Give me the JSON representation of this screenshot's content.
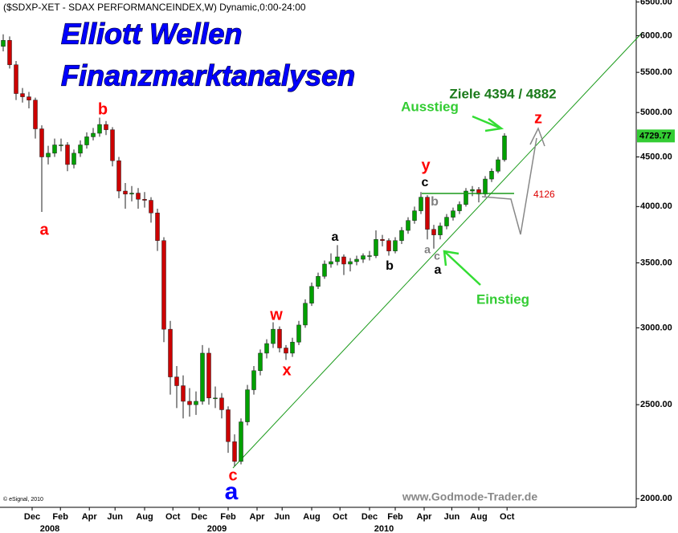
{
  "chart_data": {
    "type": "candlestick",
    "title": "($SDXP-XET - SDAX PERFORMANCEINDEX,W) Dynamic,0:00-24:00",
    "up_color": "#00a000",
    "down_color": "#cc0000",
    "log_scale": true,
    "grid": false,
    "ylim": [
      1930,
      6530
    ],
    "yticks": [
      {
        "value": 2000,
        "label": "2000.00"
      },
      {
        "value": 2500,
        "label": "2500.00"
      },
      {
        "value": 3000,
        "label": "3000.00"
      },
      {
        "value": 3500,
        "label": "3500.00"
      },
      {
        "value": 4000,
        "label": "4000.00"
      },
      {
        "value": 4500,
        "label": "4500.00"
      },
      {
        "value": 5000,
        "label": "5000.00"
      },
      {
        "value": 5500,
        "label": "5500.00"
      },
      {
        "value": 6000,
        "label": "6000.00"
      },
      {
        "value": 6500,
        "label": "6500.00"
      }
    ],
    "xticks": [
      {
        "value": 4.5,
        "label": "Dec"
      },
      {
        "value": 8.9,
        "label": "Feb"
      },
      {
        "value": 13.4,
        "label": "Apr"
      },
      {
        "value": 17.4,
        "label": "Jun"
      },
      {
        "value": 22,
        "label": "Aug"
      },
      {
        "value": 26.4,
        "label": "Oct"
      },
      {
        "value": 30.5,
        "label": "Dec"
      },
      {
        "value": 35,
        "label": "Feb"
      },
      {
        "value": 39.5,
        "label": "Apr"
      },
      {
        "value": 43.4,
        "label": "Jun"
      },
      {
        "value": 48,
        "label": "Aug"
      },
      {
        "value": 52.4,
        "label": "Oct"
      },
      {
        "value": 57,
        "label": "Dec"
      },
      {
        "value": 61,
        "label": "Feb"
      },
      {
        "value": 65.5,
        "label": "Apr"
      },
      {
        "value": 69.8,
        "label": "Jun"
      },
      {
        "value": 74,
        "label": "Aug"
      },
      {
        "value": 78.4,
        "label": "Oct"
      }
    ],
    "year_ticks": [
      {
        "value": 7.25,
        "label": "2008"
      },
      {
        "value": 33.25,
        "label": "2009"
      },
      {
        "value": 59.25,
        "label": "2010"
      }
    ],
    "candles": [
      [
        5850,
        6020,
        5780,
        5934
      ],
      [
        5934,
        5990,
        5550,
        5600
      ],
      [
        5600,
        5650,
        5150,
        5230
      ],
      [
        5230,
        5300,
        5120,
        5190
      ],
      [
        5190,
        5250,
        5050,
        5150
      ],
      [
        5150,
        5180,
        4700,
        4810
      ],
      [
        4810,
        4850,
        3950,
        4500
      ],
      [
        4500,
        4620,
        4420,
        4540
      ],
      [
        4540,
        4700,
        4500,
        4630
      ],
      [
        4630,
        4700,
        4560,
        4630
      ],
      [
        4630,
        4660,
        4350,
        4420
      ],
      [
        4420,
        4580,
        4380,
        4540
      ],
      [
        4540,
        4680,
        4500,
        4630
      ],
      [
        4630,
        4770,
        4590,
        4720
      ],
      [
        4720,
        4820,
        4680,
        4760
      ],
      [
        4760,
        4940,
        4720,
        4860
      ],
      [
        4860,
        4900,
        4740,
        4800
      ],
      [
        4800,
        4830,
        4400,
        4460
      ],
      [
        4460,
        4500,
        4080,
        4150
      ],
      [
        4150,
        4230,
        3980,
        4120
      ],
      [
        4120,
        4200,
        4050,
        4130
      ],
      [
        4130,
        4180,
        3980,
        4070
      ],
      [
        4070,
        4140,
        3990,
        4060
      ],
      [
        4060,
        4090,
        3850,
        3940
      ],
      [
        3940,
        3980,
        3600,
        3690
      ],
      [
        3690,
        3720,
        2900,
        2990
      ],
      [
        2990,
        3050,
        2560,
        2670
      ],
      [
        2670,
        2740,
        2480,
        2615
      ],
      [
        2615,
        2680,
        2420,
        2520
      ],
      [
        2520,
        2600,
        2430,
        2500
      ],
      [
        2500,
        2580,
        2440,
        2520
      ],
      [
        2520,
        2880,
        2500,
        2825
      ],
      [
        2825,
        2860,
        2500,
        2540
      ],
      [
        2540,
        2610,
        2480,
        2540
      ],
      [
        2540,
        2570,
        2420,
        2470
      ],
      [
        2470,
        2490,
        2230,
        2290
      ],
      [
        2290,
        2330,
        2160,
        2185
      ],
      [
        2185,
        2420,
        2170,
        2400
      ],
      [
        2400,
        2620,
        2380,
        2590
      ],
      [
        2590,
        2740,
        2560,
        2710
      ],
      [
        2710,
        2850,
        2680,
        2825
      ],
      [
        2825,
        2920,
        2790,
        2890
      ],
      [
        2890,
        3040,
        2860,
        2990
      ],
      [
        2990,
        3010,
        2830,
        2860
      ],
      [
        2860,
        2880,
        2780,
        2825
      ],
      [
        2825,
        2930,
        2800,
        2900
      ],
      [
        2900,
        3050,
        2880,
        3020
      ],
      [
        3020,
        3210,
        3000,
        3180
      ],
      [
        3180,
        3340,
        3160,
        3310
      ],
      [
        3310,
        3420,
        3290,
        3390
      ],
      [
        3390,
        3520,
        3370,
        3490
      ],
      [
        3490,
        3580,
        3460,
        3510
      ],
      [
        3510,
        3650,
        3480,
        3550
      ],
      [
        3550,
        3570,
        3400,
        3490
      ],
      [
        3490,
        3540,
        3430,
        3510
      ],
      [
        3510,
        3560,
        3480,
        3530
      ],
      [
        3530,
        3580,
        3500,
        3560
      ],
      [
        3560,
        3600,
        3520,
        3560
      ],
      [
        3560,
        3780,
        3540,
        3700
      ],
      [
        3700,
        3740,
        3640,
        3690
      ],
      [
        3690,
        3710,
        3560,
        3600
      ],
      [
        3600,
        3720,
        3580,
        3690
      ],
      [
        3690,
        3810,
        3660,
        3780
      ],
      [
        3780,
        3900,
        3750,
        3870
      ],
      [
        3870,
        4000,
        3840,
        3960
      ],
      [
        3960,
        4140,
        3930,
        4090
      ],
      [
        4090,
        4110,
        3700,
        3790
      ],
      [
        3790,
        3830,
        3620,
        3740
      ],
      [
        3740,
        3850,
        3700,
        3820
      ],
      [
        3820,
        3930,
        3790,
        3900
      ],
      [
        3900,
        3990,
        3870,
        3960
      ],
      [
        3960,
        4050,
        3930,
        4020
      ],
      [
        4020,
        4180,
        4000,
        4150
      ],
      [
        4150,
        4200,
        4100,
        4165
      ],
      [
        4165,
        4190,
        4040,
        4120
      ],
      [
        4120,
        4300,
        4100,
        4270
      ],
      [
        4270,
        4380,
        4240,
        4350
      ],
      [
        4350,
        4500,
        4330,
        4470
      ],
      [
        4470,
        4760,
        4450,
        4729.77
      ]
    ],
    "support_level": 4126,
    "headline": [
      "Elliott Wellen",
      "Finanzmarktanalysen"
    ],
    "annotations": [
      {
        "text": "a",
        "color": "#ff0000"
      },
      {
        "text": "b",
        "color": "#ff0000"
      },
      {
        "text": "c",
        "color": "#ff0000"
      },
      {
        "text": "a",
        "color": "#0000ff"
      },
      {
        "text": "w",
        "color": "#ff0000"
      },
      {
        "text": "x",
        "color": "#ff0000"
      },
      {
        "text": "y",
        "color": "#ff0000"
      },
      {
        "text": "z",
        "color": "#ff0000"
      },
      {
        "text": "c",
        "color": "#000000"
      },
      {
        "text": "b",
        "color": "#808080"
      },
      {
        "text": "a",
        "color": "#000000"
      },
      {
        "text": "b",
        "color": "#000000"
      },
      {
        "text": "a",
        "color": "#808080"
      },
      {
        "text": "c",
        "color": "#808080"
      },
      {
        "text": "a",
        "color": "#000000"
      },
      {
        "text": "Ziele 4394 / 4882",
        "color": "#1a7a1a"
      },
      {
        "text": "Ausstieg",
        "color": "#33cc33"
      },
      {
        "text": "Einstieg",
        "color": "#33cc33"
      }
    ],
    "source": "© eSignal, 2010",
    "watermark": "www.Godmode-Trader.de"
  }
}
